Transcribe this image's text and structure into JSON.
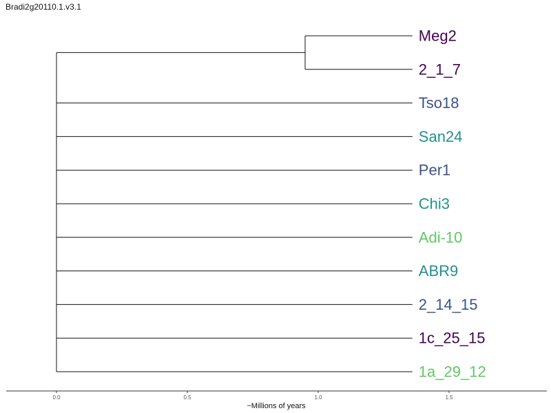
{
  "title": "Bradi2g20110.1.v3.1",
  "chart_data": {
    "type": "dendrogram",
    "title": "Bradi2g20110.1.v3.1",
    "xlabel": "~Millions of years",
    "ylabel": "",
    "xlim": [
      0.0,
      1.9
    ],
    "x_ticks": [
      {
        "value": 0.0,
        "label": "0.0"
      },
      {
        "value": 0.5,
        "label": "0.5"
      },
      {
        "value": 1.0,
        "label": "1.0"
      },
      {
        "value": 1.5,
        "label": "1.5"
      }
    ],
    "grid": false,
    "root_x": 0.0,
    "tip_x": 1.36,
    "leaves": [
      {
        "name": "Meg2",
        "color": "#440154"
      },
      {
        "name": "2_1_7",
        "color": "#440154"
      },
      {
        "name": "Tso18",
        "color": "#3b528b"
      },
      {
        "name": "San24",
        "color": "#21918c"
      },
      {
        "name": "Per1",
        "color": "#3b528b"
      },
      {
        "name": "Chi3",
        "color": "#21918c"
      },
      {
        "name": "Adi-10",
        "color": "#5ec962"
      },
      {
        "name": "ABR9",
        "color": "#21918c"
      },
      {
        "name": "2_14_15",
        "color": "#3b528b"
      },
      {
        "name": "1c_25_15",
        "color": "#440154"
      },
      {
        "name": "1a_29_12",
        "color": "#5ec962"
      }
    ],
    "clades": [
      {
        "members": [
          "Meg2",
          "2_1_7"
        ],
        "node_x": 0.95
      }
    ]
  }
}
